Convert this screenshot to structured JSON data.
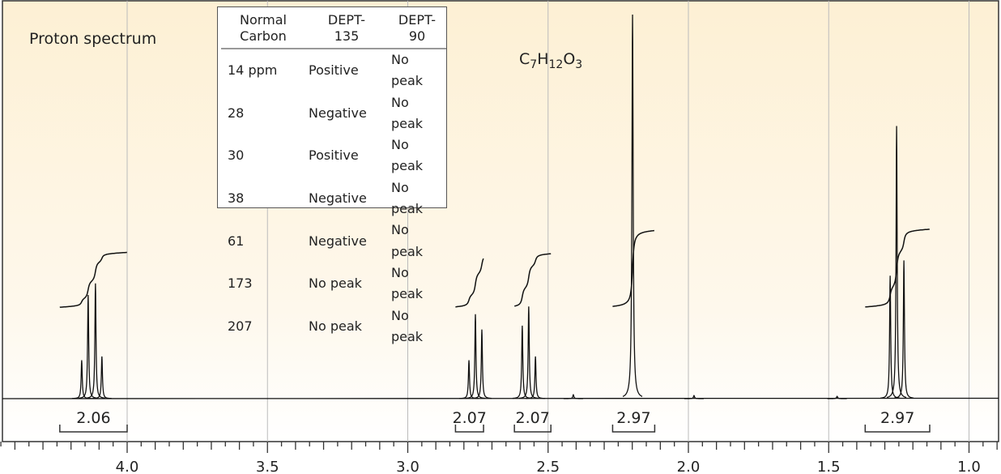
{
  "chart_data": {
    "type": "line",
    "title": "Proton spectrum",
    "formula": {
      "c": "C",
      "c_n": "7",
      "h": "H",
      "h_n": "12",
      "o": "O",
      "o_n": "3"
    },
    "xlabel": "",
    "xlim": [
      4.445,
      0.895
    ],
    "x_reversed": true,
    "xticks": [
      "4.0",
      "3.5",
      "3.0",
      "2.5",
      "2.0",
      "1.5",
      "1.0"
    ],
    "xtick_values": [
      4.0,
      3.5,
      3.0,
      2.5,
      2.0,
      1.5,
      1.0
    ],
    "minor_tick_step": 0.05,
    "grid": "vertical at major ticks",
    "background": "#fdf0d4",
    "line_color": "#111111",
    "peaks": [
      {
        "group": "quartet-4.12",
        "ppm": 4.162,
        "intensity": 0.1
      },
      {
        "group": "quartet-4.12",
        "ppm": 4.139,
        "intensity": 0.27
      },
      {
        "group": "quartet-4.12",
        "ppm": 4.113,
        "intensity": 0.3
      },
      {
        "group": "quartet-4.12",
        "ppm": 4.09,
        "intensity": 0.11
      },
      {
        "group": "triplet-2.76",
        "ppm": 2.782,
        "intensity": 0.1
      },
      {
        "group": "triplet-2.76",
        "ppm": 2.759,
        "intensity": 0.22
      },
      {
        "group": "triplet-2.76",
        "ppm": 2.736,
        "intensity": 0.18
      },
      {
        "group": "triplet-2.57",
        "ppm": 2.592,
        "intensity": 0.19
      },
      {
        "group": "triplet-2.57",
        "ppm": 2.569,
        "intensity": 0.24
      },
      {
        "group": "triplet-2.57",
        "ppm": 2.545,
        "intensity": 0.11
      },
      {
        "group": "singlet-2.20",
        "ppm": 2.199,
        "intensity": 1.0
      },
      {
        "group": "triplet-1.26",
        "ppm": 1.281,
        "intensity": 0.32
      },
      {
        "group": "triplet-1.26",
        "ppm": 1.258,
        "intensity": 0.71
      },
      {
        "group": "triplet-1.26",
        "ppm": 1.232,
        "intensity": 0.36
      },
      {
        "group": "impurity",
        "ppm": 2.41,
        "intensity": 0.01
      },
      {
        "group": "impurity",
        "ppm": 1.98,
        "intensity": 0.008
      },
      {
        "group": "impurity",
        "ppm": 1.47,
        "intensity": 0.006
      }
    ],
    "integrals": [
      {
        "label": "2.06",
        "value": 2.06,
        "from": 4.24,
        "to": 4.0
      },
      {
        "label": "2.07",
        "value": 2.07,
        "from": 2.83,
        "to": 2.73
      },
      {
        "label": "2.07",
        "value": 2.07,
        "from": 2.62,
        "to": 2.49
      },
      {
        "label": "2.97",
        "value": 2.97,
        "from": 2.27,
        "to": 2.12
      },
      {
        "label": "2.97",
        "value": 2.97,
        "from": 1.37,
        "to": 1.14
      }
    ]
  },
  "dept_table": {
    "headers": [
      [
        "Normal",
        "Carbon"
      ],
      [
        "DEPT-",
        "135"
      ],
      [
        "DEPT-",
        "90"
      ]
    ],
    "rows": [
      [
        "14 ppm",
        "Positive",
        "No peak"
      ],
      [
        "28",
        "Negative",
        "No peak"
      ],
      [
        "30",
        "Positive",
        "No peak"
      ],
      [
        "38",
        "Negative",
        "No peak"
      ],
      [
        "61",
        "Negative",
        "No peak"
      ],
      [
        "173",
        "No peak",
        "No peak"
      ],
      [
        "207",
        "No peak",
        "No peak"
      ]
    ]
  }
}
